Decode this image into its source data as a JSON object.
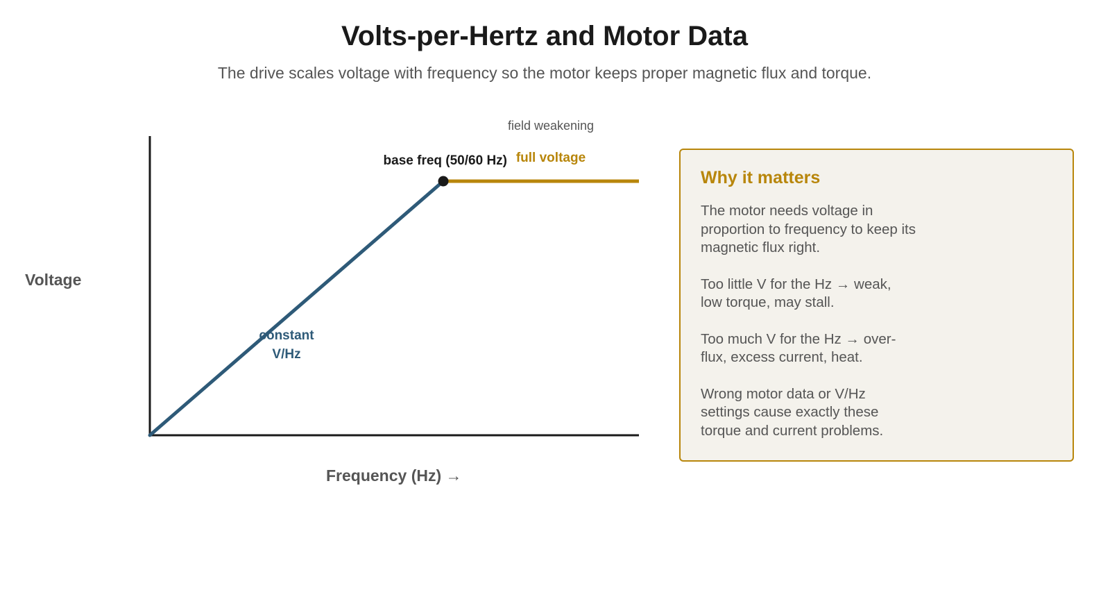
{
  "header": {
    "title": "Volts-per-Hertz and Motor Data",
    "subtitle": "The drive scales voltage with frequency so the motor keeps proper magnetic flux and torque."
  },
  "diagram": {
    "y_axis_label": "Voltage",
    "x_axis_label": "Frequency (Hz) →",
    "base_point_label": "base freq (50/60 Hz)",
    "ramp_label_line1": "constant",
    "ramp_label_line2": "V/Hz",
    "flat_label": "full voltage",
    "region_label": "field weakening"
  },
  "colors": {
    "ramp": "#2e5a78",
    "flat": "#b8860b",
    "axis": "#1a1a1a",
    "panel_bg": "#f4f2ec",
    "panel_border": "#b8860b",
    "muted_text": "#555555"
  },
  "panel": {
    "title": "Why it matters",
    "paragraphs": [
      "The motor needs voltage in proportion to frequency to keep its magnetic flux right.",
      "Too little V for the Hz → weak, low torque, may stall.",
      "Too much V for the Hz → over-flux, excess current, heat.",
      "Wrong motor data or V/Hz settings cause exactly these torque and current problems."
    ]
  }
}
